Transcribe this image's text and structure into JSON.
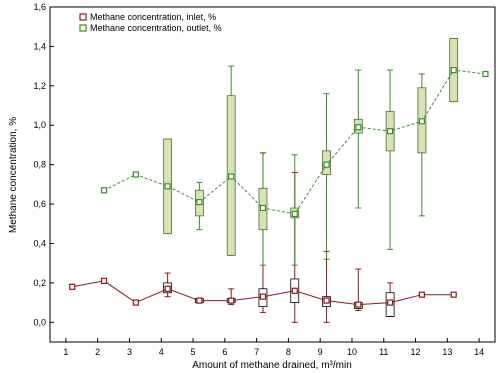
{
  "chart_data": {
    "type": "line",
    "title": "",
    "xlabel": "Amount of methane drained, m³/min",
    "ylabel": "Methane concentration, %",
    "xlim": [
      0.5,
      14.5
    ],
    "ylim": [
      -0.1,
      1.6
    ],
    "x_ticks": [
      1,
      2,
      3,
      4,
      5,
      6,
      7,
      8,
      9,
      10,
      11,
      12,
      13,
      14
    ],
    "y_ticks": [
      0.0,
      0.2,
      0.4,
      0.6,
      0.8,
      1.0,
      1.2,
      1.4,
      1.6
    ],
    "y_tick_labels": [
      "0,0",
      "0,2",
      "0,4",
      "0,6",
      "0,8",
      "1,0",
      "1,2",
      "1,4",
      "1,6"
    ],
    "grid": false,
    "legend_position": "top-left",
    "series": [
      {
        "name": "Methane concentration, inlet, %",
        "color": "#8b1a1a",
        "line_style": "solid",
        "marker": "square",
        "points": [
          {
            "x": 1.2,
            "y": 0.18
          },
          {
            "x": 2.2,
            "y": 0.21
          },
          {
            "x": 3.2,
            "y": 0.1
          },
          {
            "x": 4.2,
            "y": 0.17,
            "box_low": 0.15,
            "box_high": 0.2,
            "whisker_low": 0.13,
            "whisker_high": 0.25
          },
          {
            "x": 5.2,
            "y": 0.11,
            "box_low": 0.1,
            "box_high": 0.12,
            "whisker_low": 0.1,
            "whisker_high": 0.12
          },
          {
            "x": 6.2,
            "y": 0.11,
            "box_low": 0.1,
            "box_high": 0.12,
            "whisker_low": 0.09,
            "whisker_high": 0.17
          },
          {
            "x": 7.2,
            "y": 0.13,
            "box_low": 0.08,
            "box_high": 0.17,
            "whisker_low": 0.05,
            "whisker_high": 0.86
          },
          {
            "x": 8.2,
            "y": 0.16,
            "box_low": 0.1,
            "box_high": 0.22,
            "whisker_low": 0.0,
            "whisker_high": 0.76
          },
          {
            "x": 9.2,
            "y": 0.11,
            "box_low": 0.08,
            "box_high": 0.13,
            "whisker_low": 0.0,
            "whisker_high": 0.36
          },
          {
            "x": 10.2,
            "y": 0.09,
            "box_low": 0.07,
            "box_high": 0.1,
            "whisker_low": 0.06,
            "whisker_high": 0.27
          },
          {
            "x": 11.2,
            "y": 0.1,
            "box_low": 0.03,
            "box_high": 0.15,
            "whisker_low": 0.03,
            "whisker_high": 0.2
          },
          {
            "x": 12.2,
            "y": 0.14
          },
          {
            "x": 13.2,
            "y": 0.14
          }
        ]
      },
      {
        "name": "Methane concentration, outlet, %",
        "color": "#3a8c2e",
        "line_style": "dashed",
        "marker": "square",
        "box_fill": "#d6e3b8",
        "points": [
          {
            "x": 2.2,
            "y": 0.67
          },
          {
            "x": 3.2,
            "y": 0.75
          },
          {
            "x": 4.2,
            "y": 0.69,
            "box_low": 0.45,
            "box_high": 0.93,
            "whisker_low": 0.45,
            "whisker_high": 0.93
          },
          {
            "x": 5.2,
            "y": 0.61,
            "box_low": 0.54,
            "box_high": 0.67,
            "whisker_low": 0.47,
            "whisker_high": 0.71
          },
          {
            "x": 6.2,
            "y": 0.74,
            "box_low": 0.34,
            "box_high": 1.15,
            "whisker_low": 0.34,
            "whisker_high": 1.3
          },
          {
            "x": 7.2,
            "y": 0.58,
            "box_low": 0.47,
            "box_high": 0.68,
            "whisker_low": 0.29,
            "whisker_high": 0.86
          },
          {
            "x": 8.2,
            "y": 0.55,
            "box_low": 0.53,
            "box_high": 0.58,
            "whisker_low": 0.29,
            "whisker_high": 0.85
          },
          {
            "x": 9.2,
            "y": 0.8,
            "box_low": 0.75,
            "box_high": 0.87,
            "whisker_low": 0.32,
            "whisker_high": 1.16
          },
          {
            "x": 10.2,
            "y": 0.99,
            "box_low": 0.96,
            "box_high": 1.03,
            "whisker_low": 0.58,
            "whisker_high": 1.28
          },
          {
            "x": 11.2,
            "y": 0.97,
            "box_low": 0.87,
            "box_high": 1.07,
            "whisker_low": 0.37,
            "whisker_high": 1.28
          },
          {
            "x": 12.2,
            "y": 1.02,
            "box_low": 0.86,
            "box_high": 1.19,
            "whisker_low": 0.54,
            "whisker_high": 1.26
          },
          {
            "x": 13.2,
            "y": 1.28,
            "box_low": 1.12,
            "box_high": 1.44,
            "whisker_low": 1.12,
            "whisker_high": 1.44
          },
          {
            "x": 14.2,
            "y": 1.26
          }
        ]
      }
    ]
  }
}
